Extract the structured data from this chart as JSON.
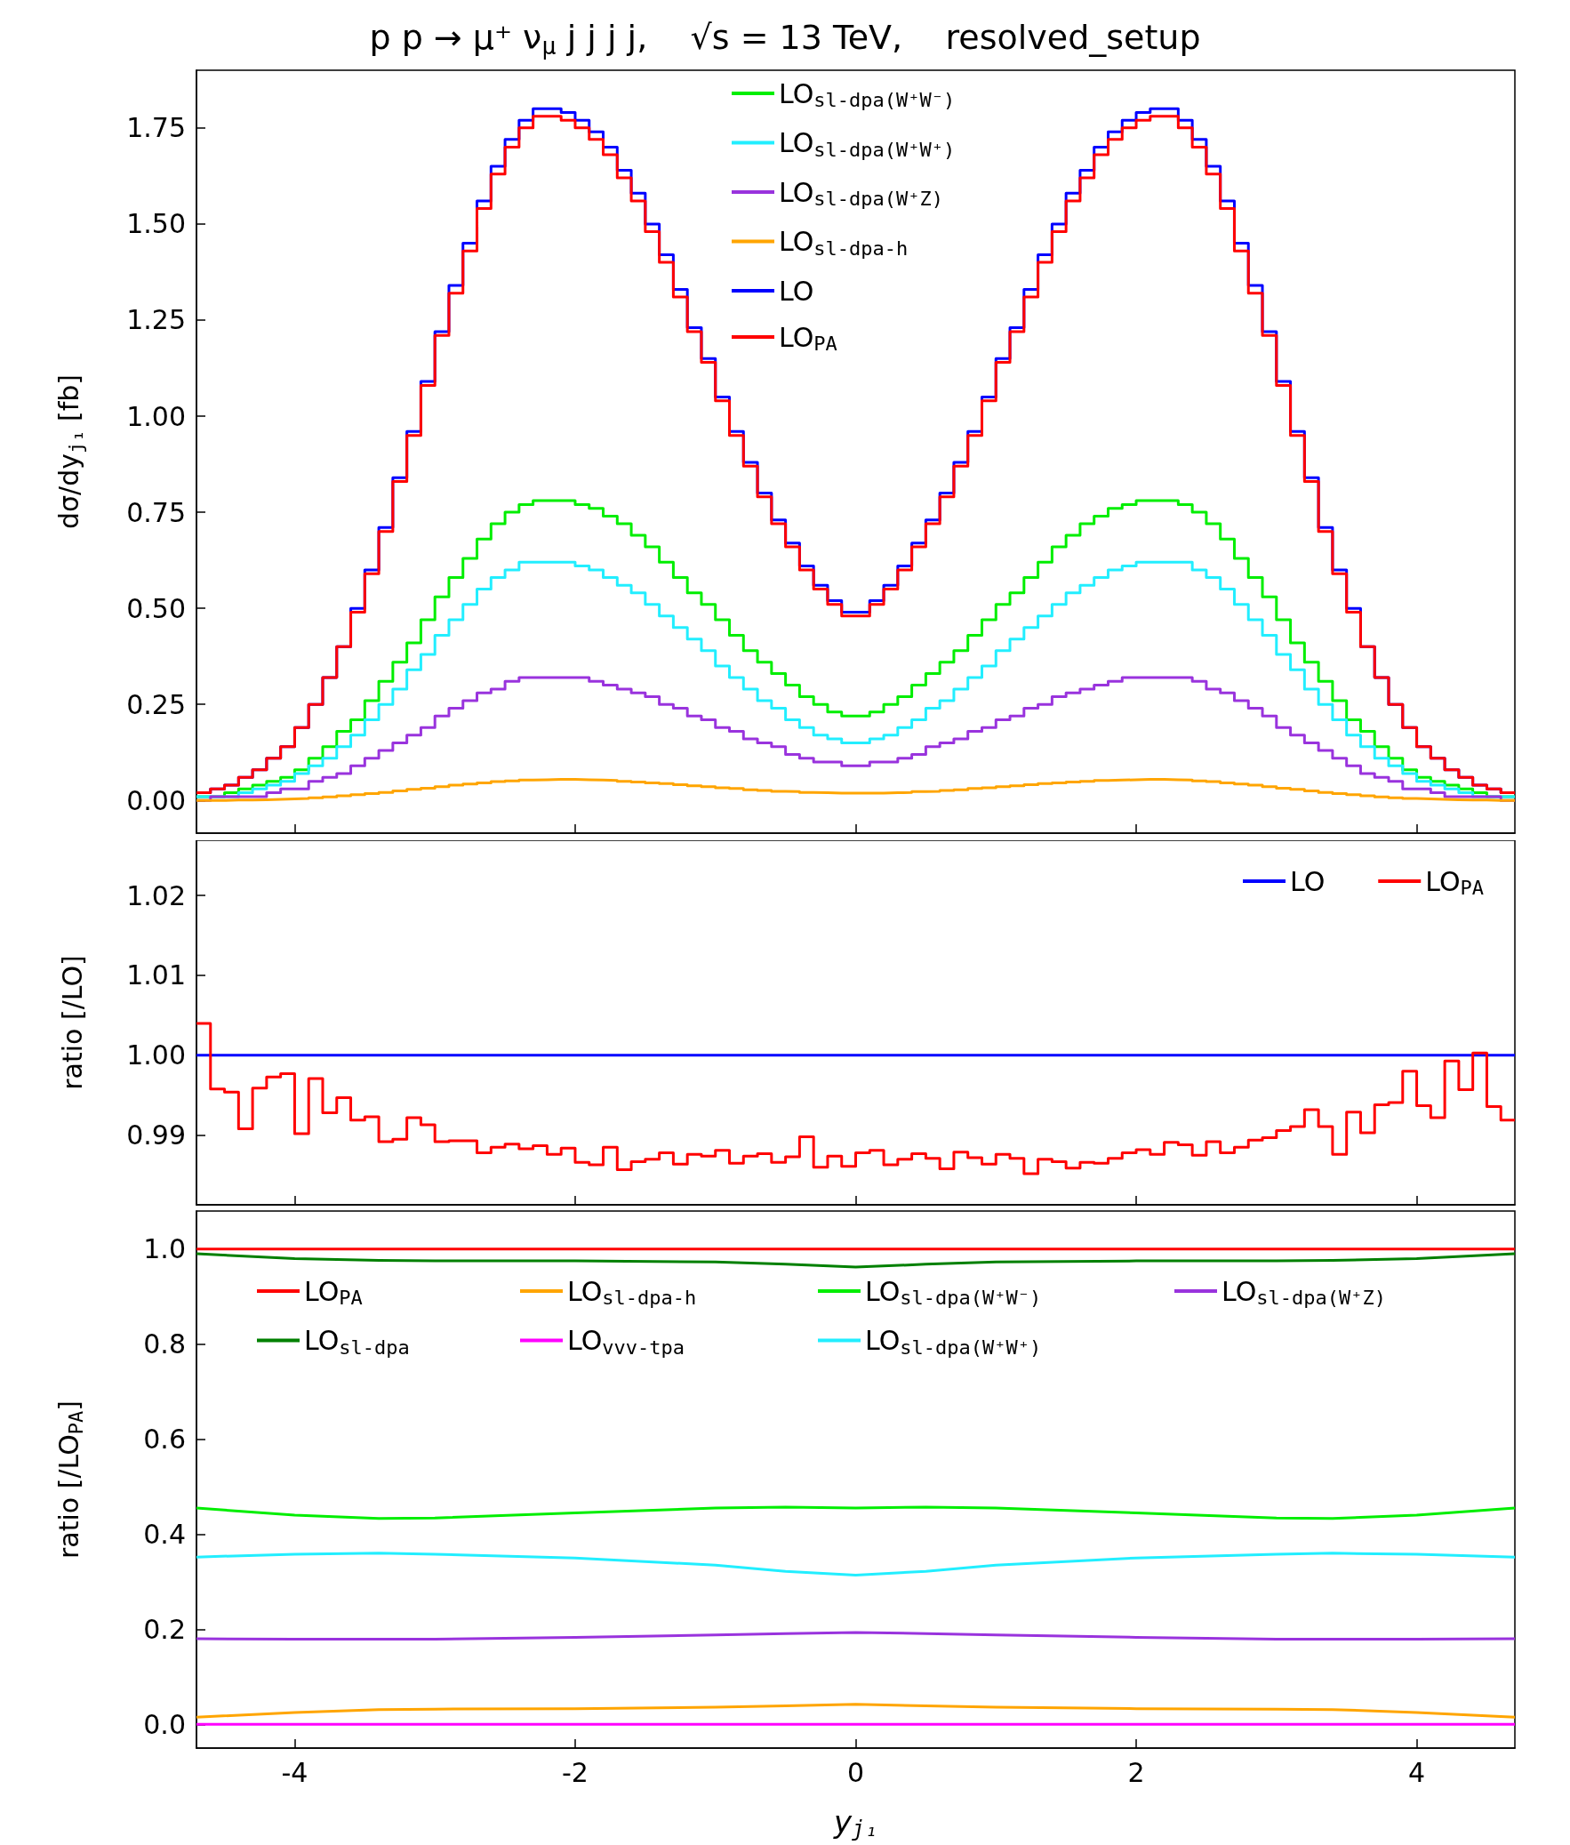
{
  "chart_data": [
    {
      "type": "histogram",
      "title": "p p → μ⁺ ν$_{μ}$ j j j j,    √s = 13 TeV,    resolved_setup",
      "ylabel": "dσ/dy$_{j₁}$ [fb]",
      "bins": [
        -4.7,
        -4.6,
        -4.5,
        -4.4,
        -4.3,
        -4.2,
        -4.1,
        -4.0,
        -3.9,
        -3.8,
        -3.7,
        -3.6,
        -3.5,
        -3.4,
        -3.3,
        -3.2,
        -3.1,
        -3.0,
        -2.9,
        -2.8,
        -2.7,
        -2.6,
        -2.5,
        -2.4,
        -2.3,
        -2.2,
        -2.1,
        -2.0,
        -1.9,
        -1.8,
        -1.7,
        -1.6,
        -1.5,
        -1.4,
        -1.3,
        -1.2,
        -1.1,
        -1.0,
        -0.9,
        -0.8,
        -0.7,
        -0.6,
        -0.5,
        -0.4,
        -0.3,
        -0.2,
        -0.1,
        0.0,
        0.1,
        0.2,
        0.3,
        0.4,
        0.5,
        0.6,
        0.7,
        0.8,
        0.9,
        1.0,
        1.1,
        1.2,
        1.3,
        1.4,
        1.5,
        1.6,
        1.7,
        1.8,
        1.9,
        2.0,
        2.1,
        2.2,
        2.3,
        2.4,
        2.5,
        2.6,
        2.7,
        2.8,
        2.9,
        3.0,
        3.1,
        3.2,
        3.3,
        3.4,
        3.5,
        3.6,
        3.7,
        3.8,
        3.9,
        4.0,
        4.1,
        4.2,
        4.3,
        4.4,
        4.5,
        4.6,
        4.7
      ],
      "series": [
        {
          "name": "LO$_{sl-dpa(W⁺W⁻)}$",
          "color": "#00ee00",
          "values": [
            0.01,
            0.01,
            0.02,
            0.03,
            0.04,
            0.05,
            0.06,
            0.08,
            0.11,
            0.14,
            0.18,
            0.21,
            0.26,
            0.31,
            0.36,
            0.41,
            0.47,
            0.53,
            0.58,
            0.63,
            0.68,
            0.72,
            0.75,
            0.77,
            0.78,
            0.78,
            0.78,
            0.77,
            0.76,
            0.74,
            0.72,
            0.69,
            0.66,
            0.62,
            0.58,
            0.54,
            0.51,
            0.47,
            0.43,
            0.39,
            0.36,
            0.33,
            0.3,
            0.27,
            0.25,
            0.23,
            0.22,
            0.22,
            0.23,
            0.25,
            0.27,
            0.3,
            0.33,
            0.36,
            0.39,
            0.43,
            0.47,
            0.51,
            0.54,
            0.58,
            0.62,
            0.66,
            0.69,
            0.72,
            0.74,
            0.76,
            0.77,
            0.78,
            0.78,
            0.78,
            0.77,
            0.75,
            0.72,
            0.68,
            0.63,
            0.58,
            0.53,
            0.47,
            0.41,
            0.36,
            0.31,
            0.26,
            0.21,
            0.18,
            0.14,
            0.11,
            0.08,
            0.06,
            0.05,
            0.04,
            0.03,
            0.02,
            0.01,
            0.01
          ]
        },
        {
          "name": "LO$_{sl-dpa(W⁺W⁺)}$",
          "color": "#22eeff",
          "values": [
            0.01,
            0.01,
            0.01,
            0.02,
            0.03,
            0.04,
            0.05,
            0.07,
            0.09,
            0.11,
            0.14,
            0.17,
            0.21,
            0.25,
            0.29,
            0.34,
            0.38,
            0.43,
            0.47,
            0.51,
            0.55,
            0.58,
            0.6,
            0.62,
            0.62,
            0.62,
            0.62,
            0.61,
            0.6,
            0.58,
            0.56,
            0.54,
            0.51,
            0.48,
            0.45,
            0.42,
            0.39,
            0.35,
            0.32,
            0.29,
            0.26,
            0.24,
            0.21,
            0.19,
            0.17,
            0.16,
            0.15,
            0.15,
            0.16,
            0.17,
            0.19,
            0.21,
            0.24,
            0.26,
            0.29,
            0.32,
            0.35,
            0.39,
            0.42,
            0.45,
            0.48,
            0.51,
            0.54,
            0.56,
            0.58,
            0.6,
            0.61,
            0.62,
            0.62,
            0.62,
            0.62,
            0.6,
            0.58,
            0.55,
            0.51,
            0.47,
            0.43,
            0.38,
            0.34,
            0.29,
            0.25,
            0.21,
            0.17,
            0.14,
            0.11,
            0.09,
            0.07,
            0.05,
            0.04,
            0.03,
            0.02,
            0.01,
            0.01,
            0.01
          ]
        },
        {
          "name": "LO$_{sl-dpa(W⁺Z)}$",
          "color": "#9933dd",
          "values": [
            0.0,
            0.01,
            0.01,
            0.01,
            0.01,
            0.02,
            0.03,
            0.03,
            0.05,
            0.06,
            0.07,
            0.09,
            0.11,
            0.13,
            0.15,
            0.17,
            0.19,
            0.22,
            0.24,
            0.26,
            0.28,
            0.29,
            0.31,
            0.32,
            0.32,
            0.32,
            0.32,
            0.32,
            0.31,
            0.3,
            0.29,
            0.28,
            0.27,
            0.25,
            0.24,
            0.22,
            0.21,
            0.19,
            0.18,
            0.16,
            0.15,
            0.14,
            0.12,
            0.11,
            0.1,
            0.1,
            0.09,
            0.09,
            0.1,
            0.1,
            0.11,
            0.12,
            0.14,
            0.15,
            0.16,
            0.18,
            0.19,
            0.21,
            0.22,
            0.24,
            0.25,
            0.27,
            0.28,
            0.29,
            0.3,
            0.31,
            0.32,
            0.32,
            0.32,
            0.32,
            0.32,
            0.31,
            0.29,
            0.28,
            0.26,
            0.24,
            0.22,
            0.19,
            0.17,
            0.15,
            0.13,
            0.11,
            0.09,
            0.07,
            0.06,
            0.05,
            0.03,
            0.03,
            0.02,
            0.01,
            0.01,
            0.01,
            0.01,
            0.0
          ]
        },
        {
          "name": "LO$_{sl-dpa-h}$",
          "color": "#ffa500",
          "values": [
            0.0,
            0.0,
            0.001,
            0.001,
            0.002,
            0.003,
            0.004,
            0.005,
            0.007,
            0.009,
            0.012,
            0.015,
            0.018,
            0.021,
            0.025,
            0.029,
            0.032,
            0.036,
            0.04,
            0.043,
            0.046,
            0.049,
            0.051,
            0.053,
            0.054,
            0.055,
            0.055,
            0.054,
            0.053,
            0.052,
            0.05,
            0.048,
            0.046,
            0.044,
            0.041,
            0.038,
            0.036,
            0.033,
            0.031,
            0.028,
            0.026,
            0.024,
            0.023,
            0.021,
            0.02,
            0.019,
            0.019,
            0.019,
            0.019,
            0.02,
            0.021,
            0.023,
            0.024,
            0.026,
            0.028,
            0.031,
            0.033,
            0.036,
            0.038,
            0.041,
            0.044,
            0.046,
            0.048,
            0.05,
            0.052,
            0.053,
            0.054,
            0.055,
            0.055,
            0.054,
            0.053,
            0.051,
            0.049,
            0.046,
            0.043,
            0.04,
            0.036,
            0.032,
            0.029,
            0.025,
            0.021,
            0.018,
            0.015,
            0.012,
            0.009,
            0.007,
            0.005,
            0.004,
            0.003,
            0.002,
            0.001,
            0.001,
            0.0,
            0.0
          ]
        },
        {
          "name": "LO",
          "color": "#0000ff",
          "values": [
            0.02,
            0.03,
            0.04,
            0.06,
            0.08,
            0.11,
            0.14,
            0.19,
            0.25,
            0.32,
            0.4,
            0.5,
            0.6,
            0.71,
            0.84,
            0.96,
            1.09,
            1.22,
            1.34,
            1.45,
            1.56,
            1.65,
            1.72,
            1.77,
            1.8,
            1.8,
            1.79,
            1.77,
            1.74,
            1.7,
            1.64,
            1.58,
            1.5,
            1.42,
            1.33,
            1.23,
            1.15,
            1.05,
            0.96,
            0.88,
            0.8,
            0.73,
            0.67,
            0.61,
            0.56,
            0.52,
            0.49,
            0.49,
            0.52,
            0.56,
            0.61,
            0.67,
            0.73,
            0.8,
            0.88,
            0.96,
            1.05,
            1.15,
            1.23,
            1.33,
            1.42,
            1.5,
            1.58,
            1.64,
            1.7,
            1.74,
            1.77,
            1.79,
            1.8,
            1.8,
            1.77,
            1.72,
            1.65,
            1.56,
            1.45,
            1.34,
            1.22,
            1.09,
            0.96,
            0.84,
            0.71,
            0.6,
            0.5,
            0.4,
            0.32,
            0.25,
            0.19,
            0.14,
            0.11,
            0.08,
            0.06,
            0.04,
            0.03,
            0.02
          ]
        },
        {
          "name": "LO$_{PA}$",
          "color": "#ff0000",
          "values": [
            0.02,
            0.03,
            0.04,
            0.06,
            0.08,
            0.11,
            0.14,
            0.19,
            0.25,
            0.32,
            0.4,
            0.49,
            0.59,
            0.7,
            0.83,
            0.95,
            1.08,
            1.21,
            1.32,
            1.43,
            1.54,
            1.63,
            1.7,
            1.75,
            1.78,
            1.78,
            1.77,
            1.75,
            1.72,
            1.68,
            1.62,
            1.56,
            1.48,
            1.4,
            1.31,
            1.22,
            1.14,
            1.04,
            0.95,
            0.87,
            0.79,
            0.72,
            0.66,
            0.6,
            0.55,
            0.51,
            0.48,
            0.48,
            0.51,
            0.55,
            0.6,
            0.66,
            0.72,
            0.79,
            0.87,
            0.95,
            1.04,
            1.14,
            1.22,
            1.31,
            1.4,
            1.48,
            1.56,
            1.62,
            1.68,
            1.72,
            1.75,
            1.77,
            1.78,
            1.78,
            1.75,
            1.7,
            1.63,
            1.54,
            1.43,
            1.32,
            1.21,
            1.08,
            0.95,
            0.83,
            0.7,
            0.59,
            0.49,
            0.4,
            0.32,
            0.25,
            0.19,
            0.14,
            0.11,
            0.08,
            0.06,
            0.04,
            0.03,
            0.02
          ]
        }
      ],
      "xlim": [
        -4.7,
        4.7
      ],
      "xticks": [
        -4,
        -2,
        0,
        2,
        4
      ],
      "ylim": [
        -0.085,
        1.9
      ],
      "yticks": [
        {
          "value": 0,
          "label": "0.00"
        },
        0.25,
        {
          "value": 0.5,
          "label": "0.50"
        },
        0.75,
        {
          "value": 1,
          "label": "1.00"
        },
        1.25,
        {
          "value": 1.5,
          "label": "1.50"
        },
        1.75
      ],
      "tick_labels": "y",
      "legend": "top",
      "grid": false,
      "marker": "none",
      "line_style": "solid"
    },
    {
      "type": "histogram",
      "ylabel": "ratio [/LO]",
      "bins": [
        -4.7,
        -4.6,
        -4.5,
        -4.4,
        -4.3,
        -4.2,
        -4.1,
        -4.0,
        -3.9,
        -3.8,
        -3.7,
        -3.6,
        -3.5,
        -3.4,
        -3.3,
        -3.2,
        -3.1,
        -3.0,
        -2.9,
        -2.8,
        -2.7,
        -2.6,
        -2.5,
        -2.4,
        -2.3,
        -2.2,
        -2.1,
        -2.0,
        -1.9,
        -1.8,
        -1.7,
        -1.6,
        -1.5,
        -1.4,
        -1.3,
        -1.2,
        -1.1,
        -1.0,
        -0.9,
        -0.8,
        -0.7,
        -0.6,
        -0.5,
        -0.4,
        -0.3,
        -0.2,
        -0.1,
        0.0,
        0.1,
        0.2,
        0.3,
        0.4,
        0.5,
        0.6,
        0.7,
        0.8,
        0.9,
        1.0,
        1.1,
        1.2,
        1.3,
        1.4,
        1.5,
        1.6,
        1.7,
        1.8,
        1.9,
        2.0,
        2.1,
        2.2,
        2.3,
        2.4,
        2.5,
        2.6,
        2.7,
        2.8,
        2.9,
        3.0,
        3.1,
        3.2,
        3.3,
        3.4,
        3.5,
        3.6,
        3.7,
        3.8,
        3.9,
        4.0,
        4.1,
        4.2,
        4.3,
        4.4,
        4.5,
        4.6,
        4.7
      ],
      "series": [
        {
          "name": "LO",
          "color": "#0000ff",
          "type": "line",
          "x": [
            -4.7,
            4.7
          ],
          "values": [
            1,
            1
          ]
        },
        {
          "name": "LO$_{PA}$",
          "color": "#ff0000",
          "values": [
            1.004,
            0.9958,
            0.9954,
            0.9908,
            0.9959,
            0.9973,
            0.9977,
            0.9902,
            0.9971,
            0.9928,
            0.9947,
            0.9919,
            0.9923,
            0.9892,
            0.9895,
            0.9922,
            0.9913,
            0.9892,
            0.9893,
            0.9893,
            0.9878,
            0.9885,
            0.9889,
            0.9883,
            0.9887,
            0.9876,
            0.9884,
            0.9866,
            0.9863,
            0.9885,
            0.9857,
            0.9867,
            0.987,
            0.9878,
            0.9864,
            0.9876,
            0.9874,
            0.9881,
            0.9865,
            0.9874,
            0.9877,
            0.9866,
            0.9873,
            0.9898,
            0.986,
            0.9874,
            0.9861,
            0.9878,
            0.9881,
            0.9863,
            0.987,
            0.9877,
            0.9871,
            0.9858,
            0.9879,
            0.9872,
            0.9864,
            0.9876,
            0.9871,
            0.9852,
            0.987,
            0.9867,
            0.9859,
            0.9866,
            0.9865,
            0.9871,
            0.9878,
            0.9882,
            0.9876,
            0.9891,
            0.9888,
            0.9875,
            0.9892,
            0.9878,
            0.9885,
            0.9894,
            0.9897,
            0.9906,
            0.9911,
            0.9932,
            0.9911,
            0.9876,
            0.9929,
            0.9903,
            0.9938,
            0.9941,
            0.998,
            0.9937,
            0.9922,
            0.9993,
            0.9957,
            1.0003,
            0.9936,
            0.9919
          ]
        }
      ],
      "xlim": [
        -4.7,
        4.7
      ],
      "xticks": [
        -4,
        -2,
        0,
        2,
        4
      ],
      "ylim": [
        0.9813,
        1.0269
      ],
      "yticks": [
        0.99,
        {
          "value": 1,
          "label": "1.00"
        },
        1.01,
        1.02
      ],
      "tick_labels": "y",
      "legend": "top right",
      "grid": false,
      "marker": "none",
      "line_style": "solid"
    },
    {
      "type": "line",
      "ylabel": "ratio [/LO$_{PA}$]",
      "xlabel": "y$_{j₁}$",
      "x": [
        -4.7,
        -4,
        -3.4,
        -3,
        -2,
        -1,
        -0.5,
        0,
        0.5,
        1,
        2,
        3,
        3.4,
        4,
        4.7
      ],
      "series": [
        {
          "name": "LO$_{PA}$",
          "color": "#ff0000",
          "values": [
            1,
            1,
            1,
            1,
            1,
            1,
            1,
            1,
            1,
            1,
            1,
            1,
            1,
            1,
            1
          ]
        },
        {
          "name": "LO$_{sl-dpa}$",
          "color": "#008000",
          "values": [
            0.99,
            0.98,
            0.976,
            0.975,
            0.975,
            0.973,
            0.968,
            0.962,
            0.968,
            0.973,
            0.975,
            0.975,
            0.976,
            0.98,
            0.99
          ]
        },
        {
          "name": "LO$_{sl-dpa-h}$",
          "color": "#ffa500",
          "values": [
            0.015,
            0.025,
            0.031,
            0.032,
            0.033,
            0.036,
            0.039,
            0.042,
            0.039,
            0.036,
            0.033,
            0.032,
            0.031,
            0.025,
            0.015
          ]
        },
        {
          "name": "LO$_{vvv-tpa}$",
          "color": "#ff00ff",
          "values": [
            0,
            0,
            0,
            0,
            0,
            0,
            0,
            0,
            0,
            0,
            0,
            0,
            0,
            0,
            0
          ]
        },
        {
          "name": "LO$_{sl-dpa(W⁺W⁻)}$",
          "color": "#00ee00",
          "values": [
            0.455,
            0.44,
            0.433,
            0.434,
            0.445,
            0.455,
            0.457,
            0.455,
            0.457,
            0.455,
            0.445,
            0.434,
            0.433,
            0.44,
            0.455
          ]
        },
        {
          "name": "LO$_{sl-dpa(W⁺W⁺)}$",
          "color": "#22eeff",
          "values": [
            0.352,
            0.358,
            0.36,
            0.358,
            0.35,
            0.335,
            0.322,
            0.314,
            0.322,
            0.335,
            0.35,
            0.358,
            0.36,
            0.358,
            0.352
          ]
        },
        {
          "name": "LO$_{sl-dpa(W⁺Z)}$",
          "color": "#9933dd",
          "values": [
            0.18,
            0.179,
            0.179,
            0.179,
            0.183,
            0.188,
            0.191,
            0.193,
            0.191,
            0.188,
            0.183,
            0.179,
            0.179,
            0.179,
            0.18
          ]
        }
      ],
      "xlim": [
        -4.7,
        4.7
      ],
      "xticks": [
        -4,
        -2,
        0,
        2,
        4
      ],
      "ylim": [
        -0.05,
        1.08
      ],
      "yticks": [
        {
          "value": 0,
          "label": "0.0"
        },
        0.2,
        0.4,
        0.6,
        0.8,
        {
          "value": 1,
          "label": "1.0"
        }
      ],
      "legend": "top",
      "grid": false,
      "marker": "none",
      "line_style": "solid"
    }
  ]
}
